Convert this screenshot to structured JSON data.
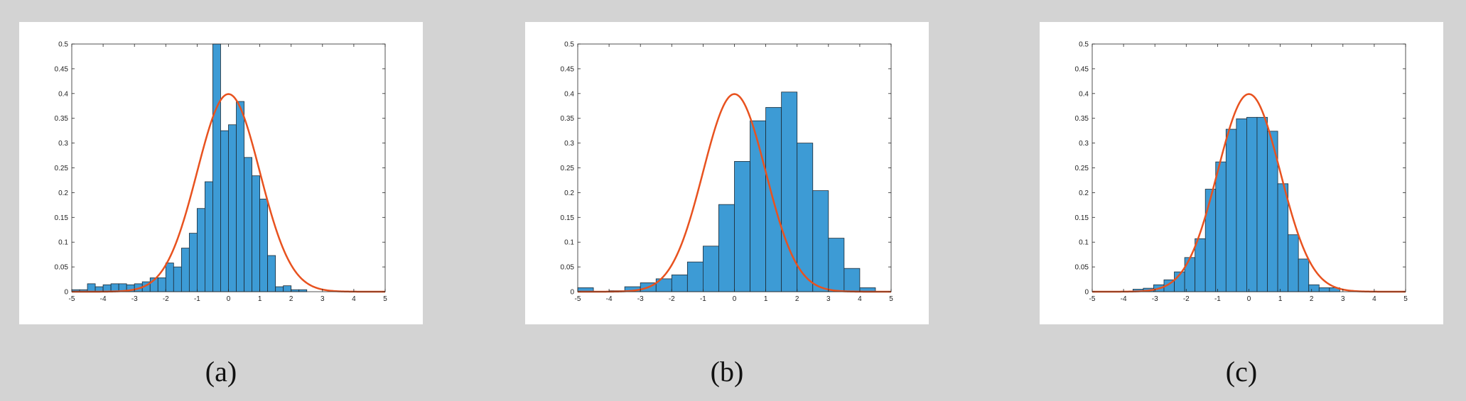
{
  "colors": {
    "bar_fill": "#3d9bd5",
    "bar_edge": "#1d2b36",
    "curve": "#e8521f",
    "axis": "#262626"
  },
  "chart_data": [
    {
      "type": "bar",
      "caption": "(a)",
      "bin_width": 0.25,
      "bins_start": [
        -5,
        -4.75,
        -4.5,
        -4.25,
        -4,
        -3.75,
        -3.5,
        -3.25,
        -3,
        -2.75,
        -2.5,
        -2.25,
        -2,
        -1.75,
        -1.5,
        -1.25,
        -1,
        -0.75,
        -0.5,
        -0.25,
        0,
        0.25,
        0.5,
        0.75,
        1,
        1.25,
        1.5,
        1.75,
        2,
        2.25,
        2.5,
        2.75,
        3,
        3.25,
        3.5,
        3.75
      ],
      "values": [
        0.004,
        0.004,
        0.016,
        0.01,
        0.014,
        0.016,
        0.016,
        0.014,
        0.016,
        0.02,
        0.028,
        0.028,
        0.058,
        0.05,
        0.088,
        0.118,
        0.168,
        0.222,
        0.5,
        0.325,
        0.337,
        0.384,
        0.271,
        0.234,
        0.187,
        0.073,
        0.01,
        0.012,
        0.004,
        0.004,
        0,
        0,
        0,
        0,
        0,
        0
      ],
      "curve": "standard normal pdf",
      "xlim": [
        -5,
        5
      ],
      "ylim": [
        0,
        0.5
      ],
      "xticks": [
        "-5",
        "-4",
        "-3",
        "-2",
        "-1",
        "0",
        "1",
        "2",
        "3",
        "4",
        "5"
      ],
      "yticks": [
        "0",
        "0.05",
        "0.1",
        "0.15",
        "0.2",
        "0.25",
        "0.3",
        "0.35",
        "0.4",
        "0.45",
        "0.5"
      ]
    },
    {
      "type": "bar",
      "caption": "(b)",
      "bin_width": 0.5,
      "bins_start": [
        -5,
        -4.5,
        -4,
        -3.5,
        -3,
        -2.5,
        -2,
        -1.5,
        -1,
        -0.5,
        0,
        0.5,
        1,
        1.5,
        2,
        2.5,
        3,
        3.5,
        4,
        4.5
      ],
      "values": [
        0.008,
        0,
        0.002,
        0.01,
        0.018,
        0.026,
        0.034,
        0.06,
        0.092,
        0.176,
        0.263,
        0.345,
        0.372,
        0.403,
        0.3,
        0.204,
        0.108,
        0.047,
        0.008,
        0
      ],
      "bins_note": "",
      "curve": "standard normal pdf",
      "xlim": [
        -5,
        5
      ],
      "ylim": [
        0,
        0.5
      ],
      "xticks": [
        "-5",
        "-4",
        "-3",
        "-2",
        "-1",
        "0",
        "1",
        "2",
        "3",
        "4",
        "5"
      ],
      "yticks": [
        "0",
        "0.05",
        "0.1",
        "0.15",
        "0.2",
        "0.25",
        "0.3",
        "0.35",
        "0.4",
        "0.45",
        "0.5"
      ]
    },
    {
      "type": "bar",
      "caption": "(c)",
      "bin_width": 0.33,
      "bins_start": [
        -3.7,
        -3.37,
        -3.04,
        -2.71,
        -2.38,
        -2.05,
        -1.72,
        -1.39,
        -1.06,
        -0.73,
        -0.4,
        -0.07,
        0.26,
        0.59,
        0.92,
        1.25,
        1.58,
        1.91,
        2.24,
        2.57,
        2.9,
        3.23
      ],
      "values": [
        0.005,
        0.007,
        0.014,
        0.024,
        0.04,
        0.069,
        0.107,
        0.207,
        0.262,
        0.328,
        0.349,
        0.352,
        0.352,
        0.324,
        0.218,
        0.115,
        0.066,
        0.014,
        0.008,
        0.008,
        0,
        0
      ],
      "curve": "standard normal pdf",
      "xlim": [
        -5,
        5
      ],
      "ylim": [
        0,
        0.5
      ],
      "xticks": [
        "-5",
        "-4",
        "-3",
        "-2",
        "-1",
        "0",
        "1",
        "2",
        "3",
        "4",
        "5"
      ],
      "yticks": [
        "0",
        "0.05",
        "0.1",
        "0.15",
        "0.2",
        "0.25",
        "0.3",
        "0.35",
        "0.4",
        "0.45",
        "0.5"
      ]
    }
  ]
}
